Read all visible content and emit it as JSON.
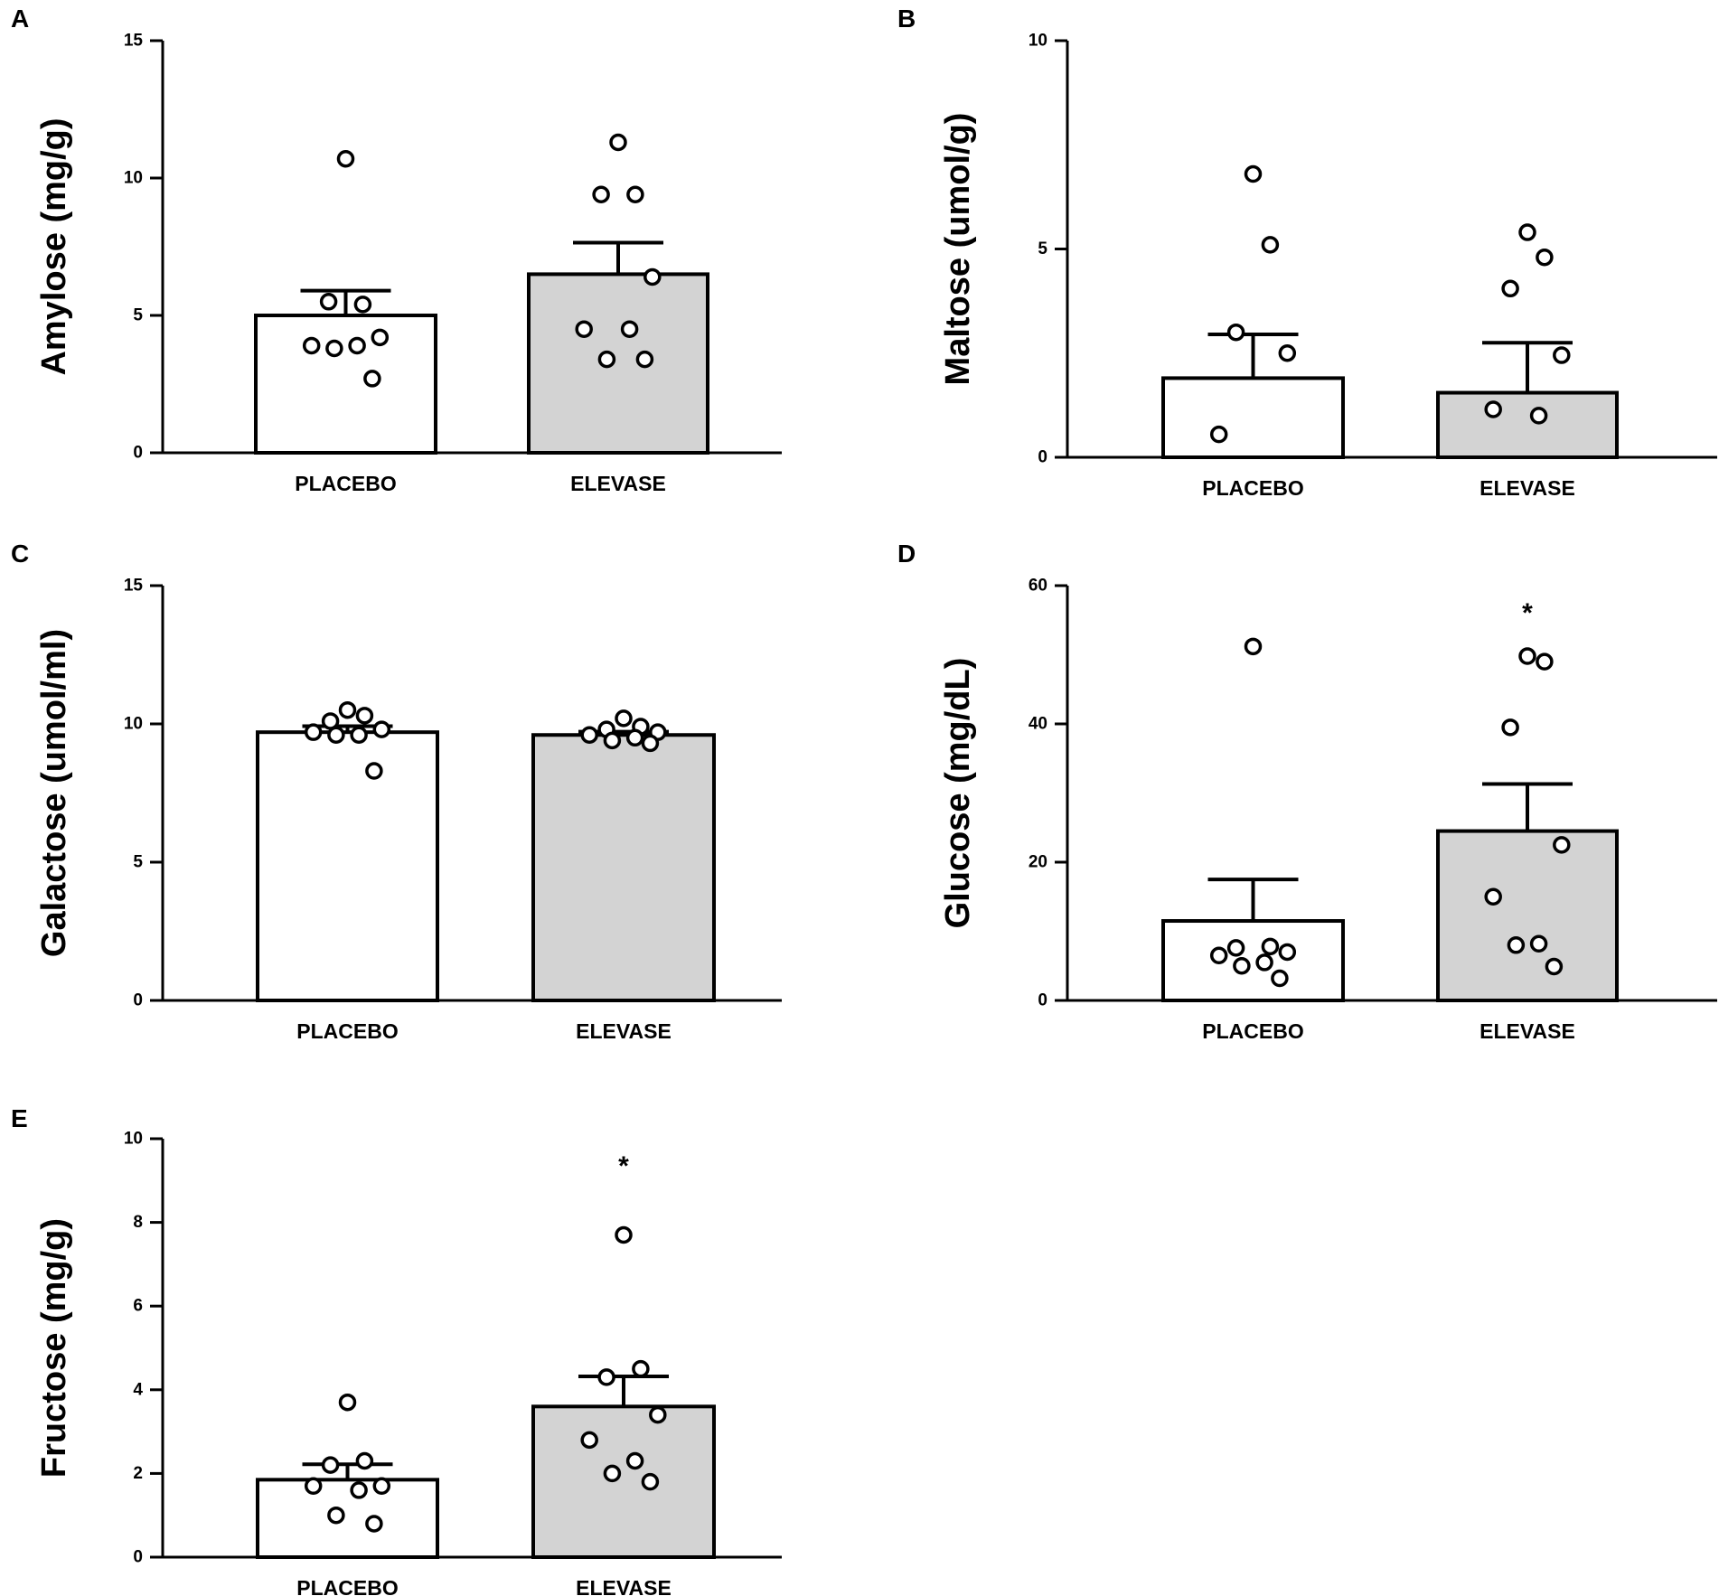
{
  "colors": {
    "placebo_fill": "#ffffff",
    "elevase_fill": "#d3d3d3",
    "stroke": "#000000",
    "point_fill": "#ffffff"
  },
  "chart_data": [
    {
      "panel": "A",
      "type": "bar",
      "categories": [
        "PLACEBO",
        "ELEVASE"
      ],
      "ylabel": "Amylose (mg/g)",
      "ylim": [
        0,
        15
      ],
      "yticks": [
        0,
        5,
        10,
        15
      ],
      "means": [
        5.0,
        6.5
      ],
      "sem": [
        0.9,
        1.15
      ],
      "points": [
        [
          10.7,
          5.4,
          5.5,
          4.2,
          3.9,
          3.9,
          3.8,
          2.7
        ],
        [
          11.3,
          9.4,
          9.4,
          6.4,
          4.5,
          4.5,
          3.4,
          3.4
        ]
      ],
      "significance": [
        "",
        ""
      ]
    },
    {
      "panel": "B",
      "type": "bar",
      "categories": [
        "PLACEBO",
        "ELEVASE"
      ],
      "ylabel": "Maltose (umol/g)",
      "ylim": [
        0,
        10
      ],
      "yticks": [
        0,
        5,
        10
      ],
      "means": [
        1.9,
        1.55
      ],
      "sem": [
        1.05,
        1.2
      ],
      "points": [
        [
          6.8,
          5.1,
          3.0,
          2.5,
          0.55
        ],
        [
          5.4,
          4.8,
          4.05,
          2.45,
          1.15,
          1.0
        ]
      ],
      "significance": [
        "",
        ""
      ]
    },
    {
      "panel": "C",
      "type": "bar",
      "categories": [
        "PLACEBO",
        "ELEVASE"
      ],
      "ylabel": "Galactose (umol/ml)",
      "ylim": [
        0,
        15
      ],
      "yticks": [
        0,
        5,
        10,
        15
      ],
      "means": [
        9.7,
        9.6
      ],
      "sem": [
        0.22,
        0.12
      ],
      "points": [
        [
          10.5,
          10.3,
          10.1,
          9.8,
          9.7,
          9.6,
          9.6,
          8.3
        ],
        [
          10.2,
          9.9,
          9.8,
          9.7,
          9.6,
          9.5,
          9.4,
          9.3
        ]
      ],
      "significance": [
        "",
        ""
      ]
    },
    {
      "panel": "D",
      "type": "bar",
      "categories": [
        "PLACEBO",
        "ELEVASE"
      ],
      "ylabel": "Glucose (mg/dL)",
      "ylim": [
        0,
        60
      ],
      "yticks": [
        0,
        20,
        40,
        60
      ],
      "means": [
        11.5,
        24.5
      ],
      "sem": [
        6.0,
        6.8
      ],
      "points": [
        [
          51.2,
          7.8,
          7.6,
          7.0,
          6.5,
          5.5,
          5.0,
          3.2
        ],
        [
          49.8,
          49.0,
          39.5,
          22.5,
          15.0,
          8.2,
          8.0,
          4.9
        ]
      ],
      "significance": [
        "",
        "*"
      ]
    },
    {
      "panel": "E",
      "type": "bar",
      "categories": [
        "PLACEBO",
        "ELEVASE"
      ],
      "ylabel": "Fructose (mg/g)",
      "ylim": [
        0,
        10
      ],
      "yticks": [
        0,
        2,
        4,
        6,
        8,
        10
      ],
      "means": [
        1.85,
        3.6
      ],
      "sem": [
        0.37,
        0.72
      ],
      "points": [
        [
          3.7,
          2.3,
          2.2,
          1.7,
          1.7,
          1.6,
          1.0,
          0.8
        ],
        [
          7.7,
          4.5,
          4.3,
          3.4,
          2.8,
          2.3,
          2.0,
          1.8
        ]
      ],
      "significance": [
        "",
        "*"
      ]
    }
  ]
}
